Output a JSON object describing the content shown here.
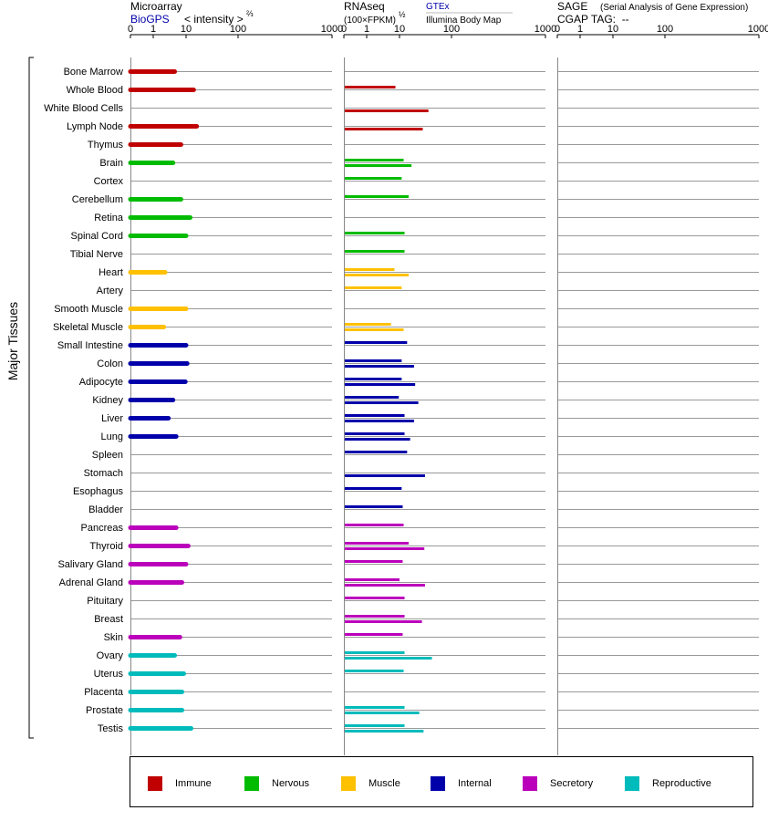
{
  "headers": {
    "microarray": "Microarray",
    "biogps": "BioGPS",
    "intensity": "< intensity >",
    "intensity_exp": "⅔",
    "rnaseq": "RNAseq",
    "fpkm": "(100×FPKM)",
    "fpkm_exp": "½",
    "gtex": "GTEx",
    "illumina": "Illumina Body Map",
    "sage": "SAGE",
    "sage_desc": "(Serial Analysis of Gene Expression)",
    "cgap": "CGAP TAG:  --"
  },
  "colors": {
    "Immune": "#c00000",
    "Nervous": "#00bb00",
    "Muscle": "#ffc000",
    "Internal": "#0000aa",
    "Secretory": "#bb00bb",
    "Reproductive": "#00bbbb"
  },
  "legend": [
    {
      "label": "Immune",
      "color": "#c00000"
    },
    {
      "label": "Nervous",
      "color": "#00bb00"
    },
    {
      "label": "Muscle",
      "color": "#ffc000"
    },
    {
      "label": "Internal",
      "color": "#0000aa"
    },
    {
      "label": "Secretory",
      "color": "#bb00bb"
    },
    {
      "label": "Reproductive",
      "color": "#00bbbb"
    }
  ],
  "chart_data": {
    "type": "bar",
    "title": "",
    "ylabel": "Major Tissues",
    "x_scale": "log",
    "x_ticks": [
      "0",
      "1",
      "10",
      "100",
      "1000"
    ],
    "panels": [
      {
        "name": "Microarray",
        "xlabel": "< intensity >⅔"
      },
      {
        "name": "RNAseq",
        "xlabel": "(100×FPKM)½",
        "series": [
          "GTEx",
          "Illumina Body Map"
        ]
      },
      {
        "name": "SAGE",
        "xlabel": "CGAP TAG: --"
      }
    ],
    "tissues": [
      {
        "name": "Bone Marrow",
        "system": "Immune",
        "microarray": 4.5,
        "gtex": null,
        "illumina": null
      },
      {
        "name": "Whole Blood",
        "system": "Immune",
        "microarray": 14,
        "gtex": 7.5,
        "illumina": null
      },
      {
        "name": "White Blood Cells",
        "system": "Immune",
        "microarray": null,
        "gtex": null,
        "illumina": 36
      },
      {
        "name": "Lymph Node",
        "system": "Immune",
        "microarray": 16,
        "gtex": null,
        "illumina": 28
      },
      {
        "name": "Thymus",
        "system": "Immune",
        "microarray": 7,
        "gtex": null,
        "illumina": null
      },
      {
        "name": "Brain",
        "system": "Nervous",
        "microarray": 4,
        "gtex": 12,
        "illumina": 17
      },
      {
        "name": "Cortex",
        "system": "Nervous",
        "microarray": null,
        "gtex": 11,
        "illumina": null
      },
      {
        "name": "Cerebellum",
        "system": "Nervous",
        "microarray": 7,
        "gtex": 15,
        "illumina": null
      },
      {
        "name": "Retina",
        "system": "Nervous",
        "microarray": 12,
        "gtex": null,
        "illumina": null
      },
      {
        "name": "Spinal Cord",
        "system": "Nervous",
        "microarray": 10,
        "gtex": 12.5,
        "illumina": null
      },
      {
        "name": "Tibial Nerve",
        "system": "Nervous",
        "microarray": null,
        "gtex": 12.5,
        "illumina": null
      },
      {
        "name": "Heart",
        "system": "Muscle",
        "microarray": 2.3,
        "gtex": 7,
        "illumina": 15
      },
      {
        "name": "Artery",
        "system": "Muscle",
        "microarray": null,
        "gtex": 11,
        "illumina": null
      },
      {
        "name": "Smooth Muscle",
        "system": "Muscle",
        "microarray": 10,
        "gtex": null,
        "illumina": null
      },
      {
        "name": "Skeletal Muscle",
        "system": "Muscle",
        "microarray": 2.1,
        "gtex": 5.5,
        "illumina": 12
      },
      {
        "name": "Small Intestine",
        "system": "Internal",
        "microarray": 10,
        "gtex": 14,
        "illumina": null
      },
      {
        "name": "Colon",
        "system": "Internal",
        "microarray": 10.5,
        "gtex": 11,
        "illumina": 19
      },
      {
        "name": "Adipocyte",
        "system": "Internal",
        "microarray": 9.5,
        "gtex": 11,
        "illumina": 20
      },
      {
        "name": "Kidney",
        "system": "Internal",
        "microarray": 4,
        "gtex": 9.5,
        "illumina": 23
      },
      {
        "name": "Liver",
        "system": "Internal",
        "microarray": 2.9,
        "gtex": 12.5,
        "illumina": 19
      },
      {
        "name": "Lung",
        "system": "Internal",
        "microarray": 5,
        "gtex": 12.5,
        "illumina": 16
      },
      {
        "name": "Spleen",
        "system": "Internal",
        "microarray": null,
        "gtex": 14,
        "illumina": null
      },
      {
        "name": "Stomach",
        "system": "Internal",
        "microarray": null,
        "gtex": null,
        "illumina": 31
      },
      {
        "name": "Esophagus",
        "system": "Internal",
        "microarray": null,
        "gtex": 11,
        "illumina": null
      },
      {
        "name": "Bladder",
        "system": "Internal",
        "microarray": null,
        "gtex": 11.5,
        "illumina": null
      },
      {
        "name": "Pancreas",
        "system": "Secretory",
        "microarray": 5,
        "gtex": 12,
        "illumina": null
      },
      {
        "name": "Thyroid",
        "system": "Secretory",
        "microarray": 11,
        "gtex": 15,
        "illumina": 30
      },
      {
        "name": "Salivary Gland",
        "system": "Secretory",
        "microarray": 10,
        "gtex": 11.5,
        "illumina": null
      },
      {
        "name": "Adrenal Gland",
        "system": "Secretory",
        "microarray": 7.5,
        "gtex": 10,
        "illumina": 31
      },
      {
        "name": "Pituitary",
        "system": "Secretory",
        "microarray": null,
        "gtex": 12.5,
        "illumina": null
      },
      {
        "name": "Breast",
        "system": "Secretory",
        "microarray": null,
        "gtex": 12.5,
        "illumina": 27
      },
      {
        "name": "Skin",
        "system": "Secretory",
        "microarray": 6.5,
        "gtex": 11.5,
        "illumina": null
      },
      {
        "name": "Ovary",
        "system": "Reproductive",
        "microarray": 4.5,
        "gtex": 12.5,
        "illumina": 42
      },
      {
        "name": "Uterus",
        "system": "Reproductive",
        "microarray": 8.5,
        "gtex": 12,
        "illumina": null
      },
      {
        "name": "Placenta",
        "system": "Reproductive",
        "microarray": 7.5,
        "gtex": null,
        "illumina": null
      },
      {
        "name": "Prostate",
        "system": "Reproductive",
        "microarray": 7.5,
        "gtex": 12.5,
        "illumina": 24
      },
      {
        "name": "Testis",
        "system": "Reproductive",
        "microarray": 12.5,
        "gtex": 12.5,
        "illumina": 29
      }
    ]
  }
}
